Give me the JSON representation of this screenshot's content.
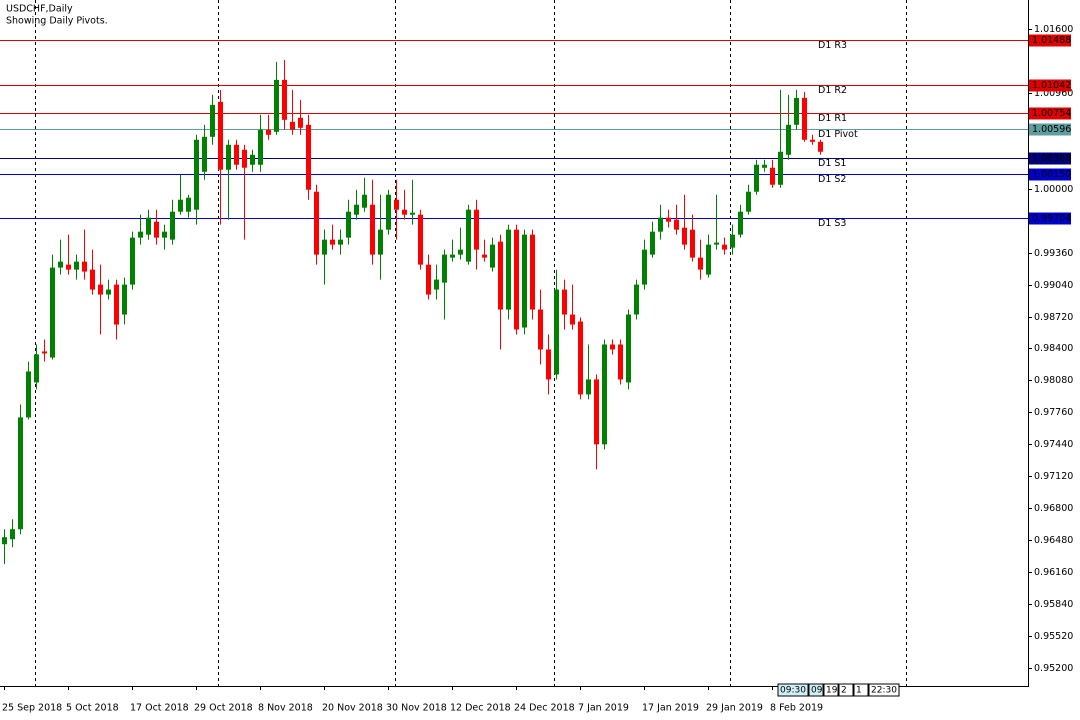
{
  "chart_data": {
    "type": "candlestick",
    "title": "USDCHF,Daily",
    "subtitle": "Showing Daily Pivots.",
    "up_color": "#008000",
    "down_color": "#ff0000",
    "categories": [
      "25 Sep 2018",
      null,
      null,
      null,
      null,
      null,
      null,
      null,
      "5 Oct 2018",
      null,
      null,
      null,
      null,
      null,
      null,
      null,
      "17 Oct 2018",
      null,
      null,
      null,
      null,
      null,
      null,
      null,
      "29 Oct 2018",
      null,
      null,
      null,
      null,
      null,
      null,
      null,
      "8 Nov 2018",
      null,
      null,
      null,
      null,
      null,
      null,
      null,
      "20 Nov 2018",
      null,
      null,
      null,
      null,
      null,
      null,
      null,
      "30 Nov 2018",
      null,
      null,
      null,
      null,
      null,
      null,
      null,
      "12 Dec 2018",
      null,
      null,
      null,
      null,
      null,
      null,
      null,
      "24 Dec 2018",
      null,
      null,
      null,
      null,
      null,
      null,
      null,
      "7 Jan 2019",
      null,
      null,
      null,
      null,
      null,
      null,
      null,
      "17 Jan 2019",
      null,
      null,
      null,
      null,
      null,
      null,
      null,
      "29 Jan 2019",
      null,
      null,
      null,
      null,
      null,
      null,
      null,
      "8 Feb 2019",
      null,
      null,
      null,
      null,
      null,
      null
    ],
    "open": [
      0.9644,
      0.9649,
      0.9659,
      0.9771,
      0.9806,
      0.9837,
      0.9831,
      0.9921,
      0.9924,
      0.9919,
      0.9927,
      0.9919,
      0.9904,
      0.9894,
      0.9904,
      0.9874,
      0.9904,
      0.9951,
      0.9954,
      0.9967,
      0.9951,
      0.9949,
      0.9977,
      0.9977,
      0.9979,
      1.0017,
      1.0052,
      1.0087,
      1.0019,
      1.0044,
      1.0039,
      1.0024,
      1.0024,
      1.0059,
      1.0057,
      1.0109,
      1.0067,
      1.0071,
      1.0064,
      0.9997,
      0.9934,
      0.9949,
      0.9944,
      0.9951,
      0.9974,
      0.9981,
      0.9984,
      0.9934,
      0.9959,
      0.9989,
      0.9979,
      0.9974,
      0.9974,
      0.9924,
      0.9899,
      0.9906,
      0.9931,
      0.9934,
      0.9927,
      0.9979,
      0.9934,
      0.9921,
      0.9947,
      0.9879,
      0.9959,
      0.9861,
      0.9954,
      0.9879,
      0.9839,
      0.9814,
      0.9899,
      0.9874,
      0.9867,
      0.9794,
      0.9809,
      0.9744,
      0.9844,
      0.9844,
      0.9806,
      0.9874,
      0.9904,
      0.9934,
      0.9957,
      0.9971,
      0.9969,
      0.9961,
      0.9959,
      0.9931,
      0.9914,
      0.9944,
      0.9944,
      0.9941,
      0.9954,
      0.9977,
      0.9997,
      1.0021,
      1.0021,
      1.0004,
      1.0034,
      1.0064,
      1.0091,
      1.0049,
      1.0047
    ],
    "high": [
      0.9659,
      0.9669,
      0.9784,
      0.9827,
      0.9844,
      0.9849,
      0.9934,
      0.9949,
      0.9954,
      0.9934,
      0.9959,
      0.9939,
      0.9924,
      0.9909,
      0.9909,
      0.9911,
      0.9957,
      0.9974,
      0.9979,
      0.9979,
      0.9964,
      0.9989,
      1.0014,
      0.9994,
      1.0054,
      1.0064,
      1.0094,
      1.0099,
      1.0049,
      1.0049,
      1.0044,
      1.0039,
      1.0074,
      1.0074,
      1.0127,
      1.0129,
      1.0099,
      1.0089,
      1.0074,
      1.0004,
      0.9959,
      0.9964,
      0.9959,
      0.9989,
      0.9999,
      1.0011,
      1.0009,
      0.9994,
      0.9999,
      1.0009,
      0.9999,
      1.0009,
      0.9979,
      0.9934,
      0.9924,
      0.9939,
      0.9949,
      0.9961,
      0.9984,
      0.9989,
      0.9949,
      0.9951,
      0.9954,
      0.9964,
      0.9964,
      0.9959,
      0.9959,
      0.9899,
      0.9854,
      0.9919,
      0.9909,
      0.9904,
      0.9871,
      0.9844,
      0.9814,
      0.9849,
      0.9849,
      0.9849,
      0.9879,
      0.9909,
      0.9949,
      0.9967,
      0.9984,
      0.9979,
      0.9984,
      0.9994,
      0.9974,
      0.9949,
      0.9954,
      0.9994,
      0.9951,
      0.9964,
      0.9984,
      1.0004,
      1.0029,
      1.0029,
      1.0029,
      1.0099,
      1.0094,
      1.0099,
      1.0097,
      1.0054,
      1.0049
    ],
    "low": [
      0.9624,
      0.9641,
      0.9654,
      0.9769,
      0.9799,
      0.9827,
      0.9829,
      0.9914,
      0.9914,
      0.9909,
      0.9909,
      0.9894,
      0.9854,
      0.9889,
      0.9849,
      0.9864,
      0.9899,
      0.9944,
      0.9949,
      0.9944,
      0.9939,
      0.9944,
      0.9974,
      0.9971,
      0.9964,
      1.0009,
      1.0044,
      0.9964,
      0.9969,
      1.0019,
      0.9949,
      1.0017,
      1.0017,
      1.0049,
      1.0054,
      1.0059,
      1.0054,
      1.0054,
      0.9989,
      0.9924,
      0.9904,
      0.9939,
      0.9934,
      0.9944,
      0.9969,
      0.9977,
      0.9924,
      0.9909,
      0.9954,
      0.9949,
      0.9969,
      0.9964,
      0.9919,
      0.9889,
      0.9889,
      0.9869,
      0.9927,
      0.9929,
      0.9924,
      0.9919,
      0.9927,
      0.9917,
      0.9839,
      0.9869,
      0.9854,
      0.9854,
      0.9869,
      0.9824,
      0.9794,
      0.9809,
      0.9859,
      0.9859,
      0.9789,
      0.9789,
      0.9719,
      0.9739,
      0.9834,
      0.9804,
      0.9799,
      0.9869,
      0.9899,
      0.9931,
      0.9949,
      0.9961,
      0.9954,
      0.9939,
      0.9927,
      0.9909,
      0.9911,
      0.9939,
      0.9934,
      0.9934,
      0.9951,
      0.9974,
      0.9994,
      1.0017,
      1.0001,
      1.0001,
      1.0029,
      1.0059,
      1.0047,
      1.0044,
      1.0034
    ],
    "close": [
      0.9651,
      0.9659,
      0.9771,
      0.9817,
      0.9834,
      0.9835,
      0.9921,
      0.9927,
      0.9919,
      0.9927,
      0.9917,
      0.9899,
      0.9894,
      0.9899,
      0.9864,
      0.9904,
      0.9951,
      0.9957,
      0.9971,
      0.9951,
      0.9957,
      0.9977,
      0.9989,
      0.9991,
      1.0049,
      1.0052,
      1.0084,
      1.0019,
      1.0044,
      1.0024,
      1.0021,
      1.0034,
      1.0059,
      1.0054,
      1.0109,
      1.0069,
      1.0059,
      1.0061,
      0.9999,
      0.9934,
      0.9949,
      0.9944,
      0.9949,
      0.9977,
      0.9984,
      0.9994,
      0.9934,
      0.9959,
      0.9994,
      0.9979,
      0.9974,
      0.9976,
      0.9924,
      0.9894,
      0.9909,
      0.9934,
      0.9934,
      0.9939,
      0.9979,
      0.9939,
      0.9931,
      0.9944,
      0.9879,
      0.9959,
      0.9859,
      0.9954,
      0.9879,
      0.9839,
      0.9809,
      0.9899,
      0.9874,
      0.9864,
      0.9794,
      0.9809,
      0.9744,
      0.9844,
      0.9839,
      0.9809,
      0.9874,
      0.9904,
      0.9939,
      0.9957,
      0.9971,
      0.9967,
      0.9959,
      0.9944,
      0.9931,
      0.9919,
      0.9944,
      0.9946,
      0.9939,
      0.9954,
      0.9977,
      0.9997,
      1.0024,
      1.0024,
      1.0004,
      1.0037,
      1.0064,
      1.0091,
      1.0049,
      1.0047,
      1.0037
    ],
    "pivots": [
      {
        "name": "D1 R3",
        "value": 1.01488,
        "label": "1.01488",
        "color": "#e00000"
      },
      {
        "name": "D1 R2",
        "value": 1.01042,
        "label": "1.01042",
        "color": "#e00000"
      },
      {
        "name": "D1 R1",
        "value": 1.00754,
        "label": "1.00754",
        "color": "#e00000"
      },
      {
        "name": "D1 Pivot",
        "value": 1.00596,
        "label": "1.00596",
        "color": "#5f9ea0"
      },
      {
        "name": "D1 S1",
        "value": 1.00308,
        "label": "1.00308",
        "color": "#000080"
      },
      {
        "name": "D1 S2",
        "value": 1.0015,
        "label": "1.00150",
        "color": "#0000cd"
      },
      {
        "name": "D1 S3",
        "value": 0.99704,
        "label": "0.99704",
        "color": "#0000cd"
      }
    ],
    "ylim": [
      0.9502,
      1.0189
    ],
    "yticks": [
      {
        "value": 1.016,
        "label": "1.01600"
      },
      {
        "value": 1.0096,
        "label": "1.00960"
      },
      {
        "value": 1.0,
        "label": "1.00000"
      },
      {
        "value": 0.9936,
        "label": "0.99360"
      },
      {
        "value": 0.9904,
        "label": "0.99040"
      },
      {
        "value": 0.9872,
        "label": "0.98720"
      },
      {
        "value": 0.984,
        "label": "0.98400"
      },
      {
        "value": 0.9808,
        "label": "0.98080"
      },
      {
        "value": 0.9776,
        "label": "0.97760"
      },
      {
        "value": 0.9744,
        "label": "0.97440"
      },
      {
        "value": 0.9712,
        "label": "0.97120"
      },
      {
        "value": 0.968,
        "label": "0.96800"
      },
      {
        "value": 0.9648,
        "label": "0.96480"
      },
      {
        "value": 0.9616,
        "label": "0.96160"
      },
      {
        "value": 0.9584,
        "label": "0.95840"
      },
      {
        "value": 0.9552,
        "label": "0.95520"
      },
      {
        "value": 0.952,
        "label": "0.95200"
      }
    ],
    "sessions": [
      "09:30",
      "09:1",
      "19",
      "2",
      "1",
      "22:30"
    ]
  }
}
